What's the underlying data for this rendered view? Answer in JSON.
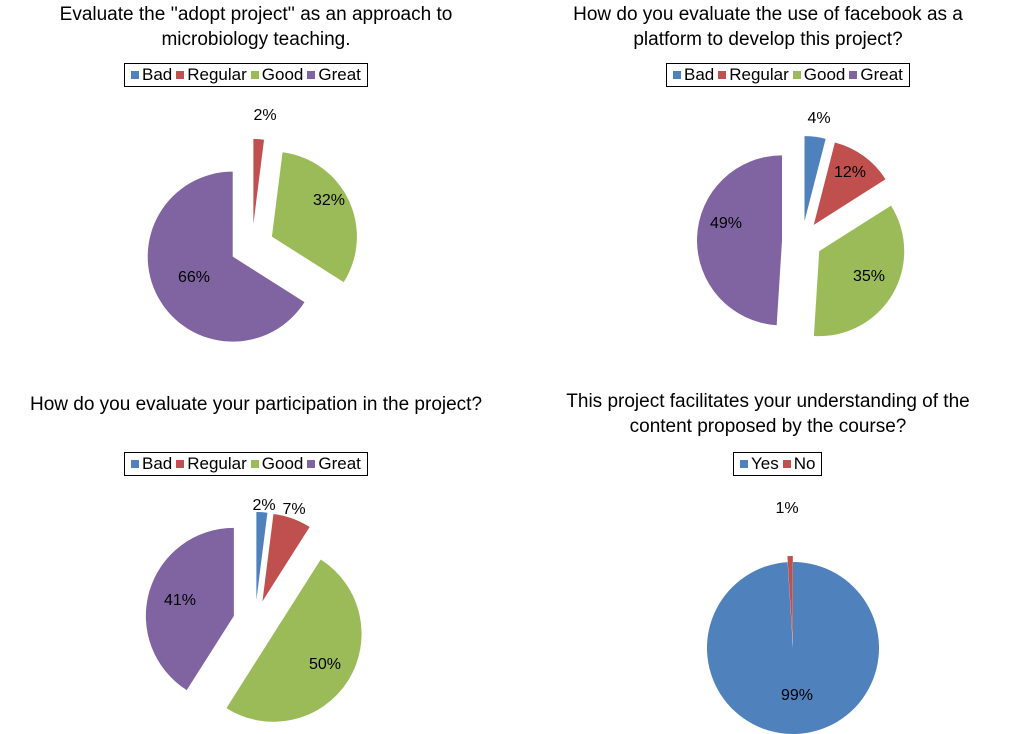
{
  "colors": {
    "bad": "#4f81bd",
    "regular": "#c0504d",
    "good": "#9bbb59",
    "great": "#8064a2"
  },
  "chart_data": [
    {
      "type": "pie",
      "title": "Evaluate the ''adopt project'' as an approach to\nmicrobiology teaching.",
      "legend_position": "top",
      "categories": [
        "Bad",
        "Regular",
        "Good",
        "Great"
      ],
      "values": [
        0,
        2,
        32,
        66
      ],
      "labels": [
        "",
        "2%",
        "32%",
        "66%"
      ],
      "colors": [
        "#4f81bd",
        "#c0504d",
        "#9bbb59",
        "#8064a2"
      ]
    },
    {
      "type": "pie",
      "title": "How do you evaluate the use of facebook as a\nplatform to develop this project?",
      "legend_position": "top",
      "categories": [
        "Bad",
        "Regular",
        "Good",
        "Great"
      ],
      "values": [
        4,
        12,
        35,
        49
      ],
      "labels": [
        "4%",
        "12%",
        "35%",
        "49%"
      ],
      "colors": [
        "#4f81bd",
        "#c0504d",
        "#9bbb59",
        "#8064a2"
      ]
    },
    {
      "type": "pie",
      "title": "How do you evaluate your participation in the project?",
      "legend_position": "top",
      "categories": [
        "Bad",
        "Regular",
        "Good",
        "Great"
      ],
      "values": [
        2,
        7,
        50,
        41
      ],
      "labels": [
        "2%",
        "7%",
        "50%",
        "41%"
      ],
      "colors": [
        "#4f81bd",
        "#c0504d",
        "#9bbb59",
        "#8064a2"
      ]
    },
    {
      "type": "pie",
      "title": "This project facilitates your understanding of the\ncontent proposed by  the course?",
      "legend_position": "top",
      "categories": [
        "Yes",
        "No"
      ],
      "values": [
        99,
        1
      ],
      "labels": [
        "99%",
        "1%"
      ],
      "colors": [
        "#4f81bd",
        "#c0504d"
      ]
    }
  ]
}
